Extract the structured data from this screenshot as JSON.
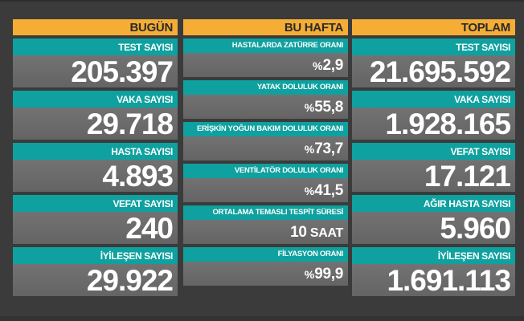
{
  "colors": {
    "background": "#3b3b3b",
    "header": "#f5ad35",
    "label_bar": "#0ea19f",
    "value_box": "#6b6b6b",
    "text": "#ffffff"
  },
  "columns": {
    "today": {
      "title": "BUGÜN",
      "items": [
        {
          "label": "TEST SAYISI",
          "value": "205.397"
        },
        {
          "label": "VAKA SAYISI",
          "value": "29.718"
        },
        {
          "label": "HASTA SAYISI",
          "value": "4.893"
        },
        {
          "label": "VEFAT SAYISI",
          "value": "240"
        },
        {
          "label": "İYİLEŞEN SAYISI",
          "value": "29.922"
        }
      ]
    },
    "this_week": {
      "title": "BU HAFTA",
      "items": [
        {
          "label": "HASTALARDA ZATÜRRE ORANI",
          "prefix": "%",
          "value": "2,9",
          "suffix": ""
        },
        {
          "label": "YATAK DOLULUK ORANI",
          "prefix": "%",
          "value": "55,8",
          "suffix": ""
        },
        {
          "label": "ERİŞKİN YOĞUN BAKIM DOLULUK ORANI",
          "prefix": "%",
          "value": "73,7",
          "suffix": ""
        },
        {
          "label": "VENTİLATÖR DOLULUK ORANI",
          "prefix": "%",
          "value": "41,5",
          "suffix": ""
        },
        {
          "label": "ORTALAMA TEMASLI TESPİT SÜRESİ",
          "prefix": "",
          "value": "10",
          "suffix": " SAAT"
        },
        {
          "label": "FİLYASYON ORANI",
          "prefix": "%",
          "value": "99,9",
          "suffix": ""
        }
      ]
    },
    "total": {
      "title": "TOPLAM",
      "items": [
        {
          "label": "TEST SAYISI",
          "value": "21.695.592"
        },
        {
          "label": "VAKA SAYISI",
          "value": "1.928.165"
        },
        {
          "label": "VEFAT SAYISI",
          "value": "17.121"
        },
        {
          "label": "AĞIR HASTA SAYISI",
          "value": "5.960"
        },
        {
          "label": "İYİLEŞEN SAYISI",
          "value": "1.691.113"
        }
      ]
    }
  }
}
